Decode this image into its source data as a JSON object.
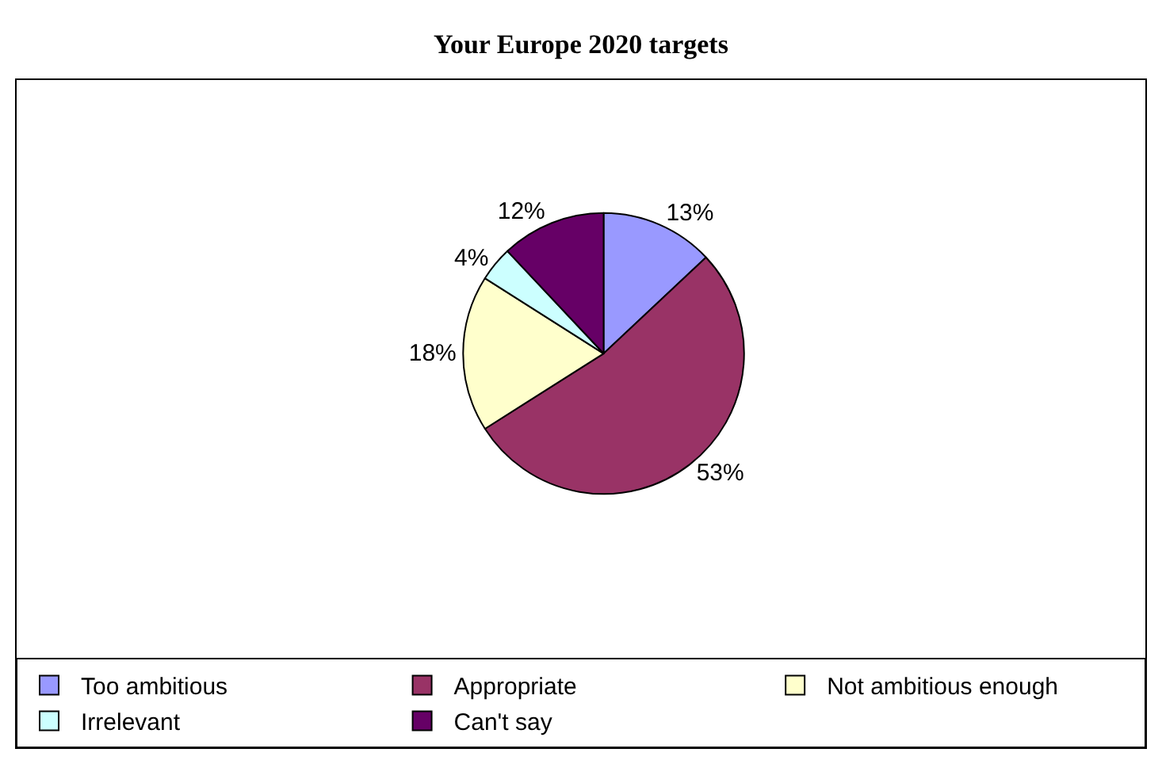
{
  "chart_data": {
    "type": "pie",
    "title": "Your Europe 2020 targets",
    "categories": [
      "Too ambitious",
      "Appropriate",
      "Not ambitious enough",
      "Irrelevant",
      "Can't say"
    ],
    "values": [
      13,
      53,
      18,
      4,
      12
    ],
    "value_labels": [
      "13%",
      "53%",
      "18%",
      "4%",
      "12%"
    ],
    "colors": [
      "#9999ff",
      "#993366",
      "#ffffcc",
      "#ccffff",
      "#660066"
    ],
    "legend": "bottom"
  }
}
